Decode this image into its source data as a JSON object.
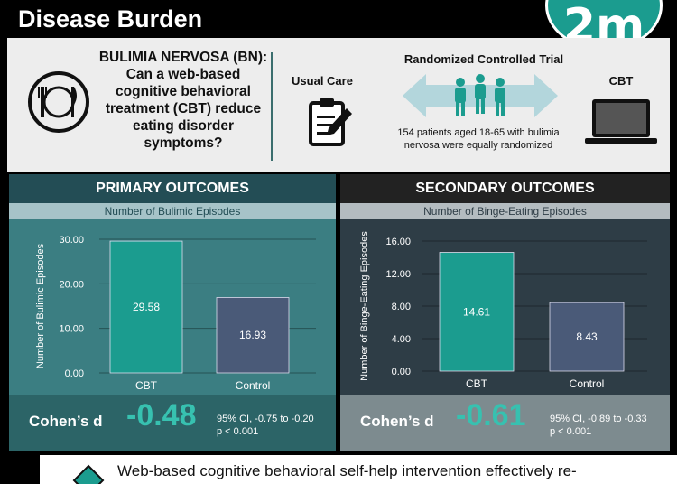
{
  "title": "Disease Burden",
  "logo_text": "2m",
  "question": {
    "lead": "BULIMIA NERVOSA (BN):",
    "body": "Can a web-based cognitive behavioral treatment (CBT) reduce eating disorder symptoms?"
  },
  "design": {
    "usual_care": "Usual Care",
    "rct_label": "Randomized Controlled Trial",
    "cbt": "CBT",
    "description": "154 patients aged 18-65 with bulimia nervosa were equally randomized"
  },
  "icons": [
    "plate-icon",
    "clipboard-icon",
    "arrow-people-icon",
    "laptop-icon",
    "diamond-icon"
  ],
  "colors": {
    "cbt_bar": "#1b9c8f",
    "control_bar": "#4a5a78",
    "accent": "#37c1b0"
  },
  "primary": {
    "heading": "PRIMARY OUTCOMES",
    "subheading": "Number of Bulimic Episodes",
    "cohen_label": "Cohen’s d",
    "cohen_value": "-0.48",
    "ci": "95% CI, -0.75 to -0.20",
    "p": "p < 0.001"
  },
  "secondary": {
    "heading": "SECONDARY OUTCOMES",
    "subheading": "Number of Binge-Eating Episodes",
    "cohen_label": "Cohen’s d",
    "cohen_value": "-0.61",
    "ci": "95% CI, -0.89 to -0.33",
    "p": "p < 0.001"
  },
  "chart_data": [
    {
      "type": "bar",
      "categories": [
        "CBT",
        "Control"
      ],
      "values": [
        29.58,
        16.93
      ],
      "value_labels": [
        "29.58",
        "16.93"
      ],
      "title": "Number of Bulimic Episodes",
      "xlabel": "",
      "ylabel": "Number of Bulimic  Episodes",
      "ylim": [
        0,
        30
      ],
      "yticks": [
        0,
        10,
        20,
        30
      ],
      "ytick_labels": [
        "0.00",
        "10.00",
        "20.00",
        "30.00"
      ],
      "grid": true
    },
    {
      "type": "bar",
      "categories": [
        "CBT",
        "Control"
      ],
      "values": [
        14.61,
        8.43
      ],
      "value_labels": [
        "14.61",
        "8.43"
      ],
      "title": "Number of Binge-Eating Episodes",
      "xlabel": "",
      "ylabel": "Number of Binge-Eating Episodes",
      "ylim": [
        0,
        16
      ],
      "yticks": [
        0,
        4,
        8,
        12,
        16
      ],
      "ytick_labels": [
        "0.00",
        "4.00",
        "8.00",
        "12.00",
        "16.00"
      ],
      "grid": true
    }
  ],
  "conclusion": "Web-based cognitive behavioral self-help intervention effectively re-"
}
